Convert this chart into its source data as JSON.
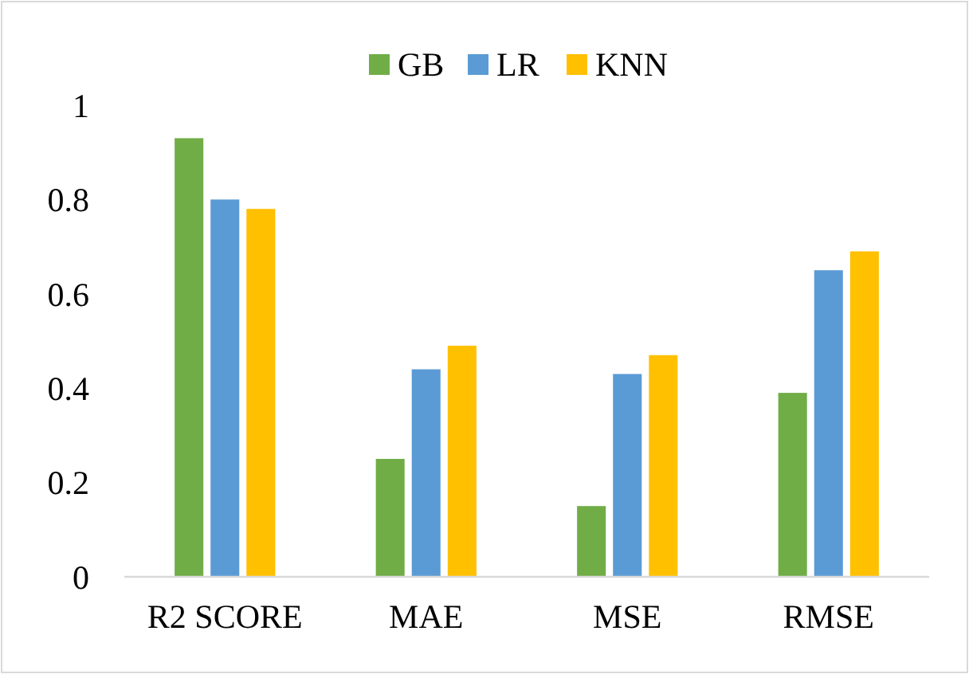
{
  "chart_data": {
    "type": "bar",
    "categories": [
      "R2 SCORE",
      "MAE",
      "MSE",
      "RMSE"
    ],
    "series": [
      {
        "name": "GB",
        "color": "#70ad47",
        "values": [
          0.93,
          0.25,
          0.15,
          0.39
        ]
      },
      {
        "name": "LR",
        "color": "#5b9bd5",
        "values": [
          0.8,
          0.44,
          0.43,
          0.65
        ]
      },
      {
        "name": "KNN",
        "color": "#ffc000",
        "values": [
          0.78,
          0.49,
          0.47,
          0.69
        ]
      }
    ],
    "ylim": [
      0,
      1
    ],
    "yticks": [
      0,
      {
        "value": 0.2,
        "label": "0.2"
      },
      {
        "value": 0.4,
        "label": "0.4"
      },
      {
        "value": 0.6,
        "label": "0.6"
      },
      {
        "value": 0.8,
        "label": "0.8"
      },
      1
    ],
    "grid": false,
    "legend": "top"
  }
}
